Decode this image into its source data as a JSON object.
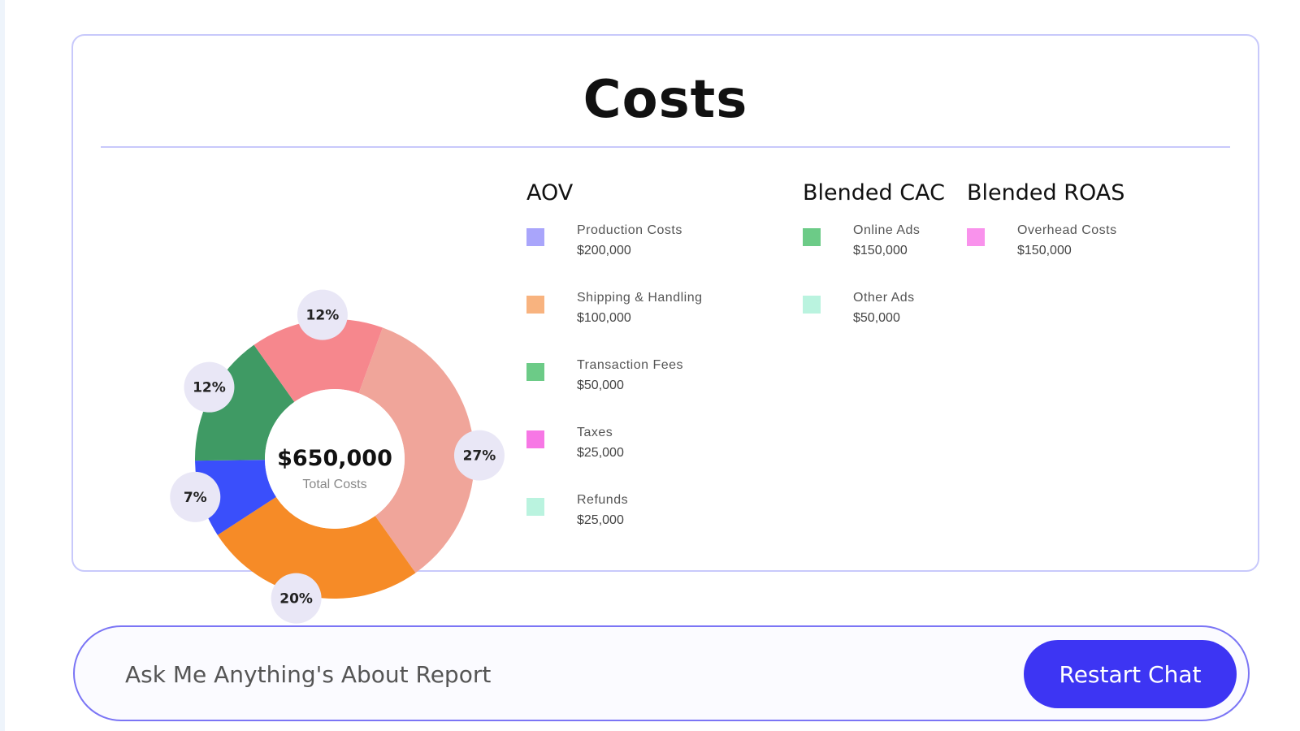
{
  "report": {
    "title": "Costs"
  },
  "chart_data": {
    "type": "pie",
    "center_value": "$650,000",
    "center_label": "Total Costs",
    "slices": [
      {
        "label": "27%",
        "value": 27,
        "color": "#f0a59a"
      },
      {
        "label": "20%",
        "value": 20,
        "color": "#f68b27"
      },
      {
        "label": "7%",
        "value": 7,
        "color": "#3a4ffb"
      },
      {
        "label": "12%",
        "value": 12,
        "color": "#3f9a64"
      },
      {
        "label": "12%",
        "value": 12,
        "color": "#f6878d"
      }
    ]
  },
  "legend": {
    "groups": [
      {
        "title": "AOV",
        "items": [
          {
            "name": "Production Costs",
            "value": "$200,000",
            "color": "#a9a5fb"
          },
          {
            "name": "Shipping & Handling",
            "value": "$100,000",
            "color": "#f8b37f"
          },
          {
            "name": "Transaction Fees",
            "value": "$50,000",
            "color": "#6ccb87"
          },
          {
            "name": "Taxes",
            "value": "$25,000",
            "color": "#f777e5"
          },
          {
            "name": "Refunds",
            "value": "$25,000",
            "color": "#baf3df"
          }
        ]
      },
      {
        "title": "Blended CAC",
        "items": [
          {
            "name": "Online Ads",
            "value": "$150,000",
            "color": "#6ccb87"
          },
          {
            "name": "Other Ads",
            "value": "$50,000",
            "color": "#baf3df"
          }
        ]
      },
      {
        "title": "Blended ROAS",
        "items": [
          {
            "name": "Overhead Costs",
            "value": "$150,000",
            "color": "#f992ec"
          }
        ]
      }
    ]
  },
  "chat": {
    "placeholder": "Ask Me Anything's About Report",
    "restart_label": "Restart Chat"
  }
}
